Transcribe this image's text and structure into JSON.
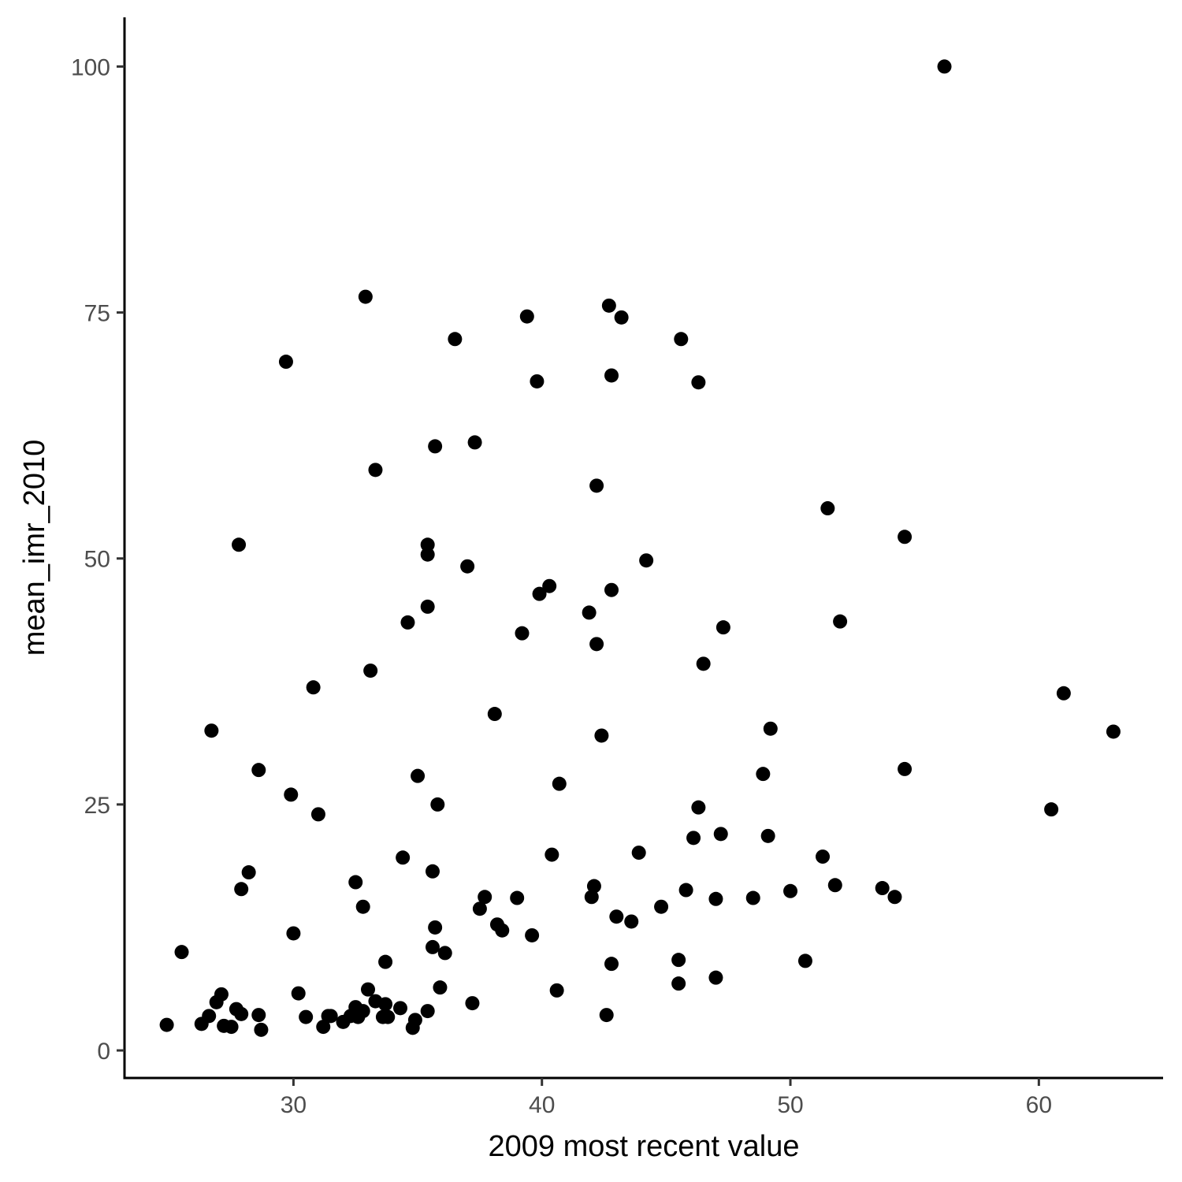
{
  "chart_data": {
    "type": "scatter",
    "xlabel": "2009 most recent value",
    "ylabel": "mean_imr_2010",
    "xlim": [
      23.2,
      65
    ],
    "ylim": [
      -2.8,
      105
    ],
    "x_ticks": [
      30,
      40,
      50,
      60
    ],
    "y_ticks": [
      0,
      25,
      50,
      75,
      100
    ],
    "grid": false,
    "point_color": "#000000",
    "points": [
      [
        56.2,
        100
      ],
      [
        32.9,
        76.6
      ],
      [
        42.7,
        75.7
      ],
      [
        39.4,
        74.6
      ],
      [
        43.2,
        74.5
      ],
      [
        36.5,
        72.3
      ],
      [
        45.6,
        72.3
      ],
      [
        29.7,
        70.0
      ],
      [
        42.8,
        68.6
      ],
      [
        39.8,
        68.0
      ],
      [
        46.3,
        67.9
      ],
      [
        37.3,
        61.8
      ],
      [
        35.7,
        61.4
      ],
      [
        33.3,
        59.0
      ],
      [
        42.2,
        57.4
      ],
      [
        51.5,
        55.1
      ],
      [
        54.6,
        52.2
      ],
      [
        27.8,
        51.4
      ],
      [
        35.4,
        51.4
      ],
      [
        35.4,
        50.4
      ],
      [
        37.0,
        49.2
      ],
      [
        44.2,
        49.8
      ],
      [
        40.3,
        47.2
      ],
      [
        39.9,
        46.4
      ],
      [
        42.8,
        46.8
      ],
      [
        35.4,
        45.1
      ],
      [
        41.9,
        44.5
      ],
      [
        34.6,
        43.5
      ],
      [
        52.0,
        43.6
      ],
      [
        47.3,
        43.0
      ],
      [
        39.2,
        42.4
      ],
      [
        42.2,
        41.3
      ],
      [
        46.5,
        39.3
      ],
      [
        33.1,
        38.6
      ],
      [
        30.8,
        36.9
      ],
      [
        61.0,
        36.3
      ],
      [
        38.1,
        34.2
      ],
      [
        26.7,
        32.5
      ],
      [
        49.2,
        32.7
      ],
      [
        63.0,
        32.4
      ],
      [
        42.4,
        32.0
      ],
      [
        28.6,
        28.5
      ],
      [
        35.0,
        27.9
      ],
      [
        48.9,
        28.1
      ],
      [
        54.6,
        28.6
      ],
      [
        40.7,
        27.1
      ],
      [
        29.9,
        26.0
      ],
      [
        35.8,
        25.0
      ],
      [
        46.3,
        24.7
      ],
      [
        60.5,
        24.5
      ],
      [
        31.0,
        24.0
      ],
      [
        47.2,
        22.0
      ],
      [
        46.1,
        21.6
      ],
      [
        49.1,
        21.8
      ],
      [
        40.4,
        19.9
      ],
      [
        43.9,
        20.1
      ],
      [
        34.4,
        19.6
      ],
      [
        51.3,
        19.7
      ],
      [
        28.2,
        18.1
      ],
      [
        35.6,
        18.2
      ],
      [
        32.5,
        17.1
      ],
      [
        27.9,
        16.4
      ],
      [
        42.1,
        16.7
      ],
      [
        45.8,
        16.3
      ],
      [
        51.8,
        16.8
      ],
      [
        53.7,
        16.5
      ],
      [
        37.7,
        15.6
      ],
      [
        39.0,
        15.5
      ],
      [
        42.0,
        15.6
      ],
      [
        47.0,
        15.4
      ],
      [
        48.5,
        15.5
      ],
      [
        50.0,
        16.2
      ],
      [
        54.2,
        15.6
      ],
      [
        32.8,
        14.6
      ],
      [
        37.5,
        14.4
      ],
      [
        44.8,
        14.6
      ],
      [
        43.0,
        13.6
      ],
      [
        43.6,
        13.1
      ],
      [
        35.7,
        12.5
      ],
      [
        38.2,
        12.8
      ],
      [
        38.4,
        12.2
      ],
      [
        30.0,
        11.9
      ],
      [
        39.6,
        11.7
      ],
      [
        25.5,
        10.0
      ],
      [
        35.6,
        10.5
      ],
      [
        36.1,
        9.9
      ],
      [
        33.7,
        9.0
      ],
      [
        42.8,
        8.8
      ],
      [
        45.5,
        9.2
      ],
      [
        50.6,
        9.1
      ],
      [
        47.0,
        7.4
      ],
      [
        45.5,
        6.8
      ],
      [
        35.9,
        6.4
      ],
      [
        40.6,
        6.1
      ],
      [
        30.2,
        5.8
      ],
      [
        33.0,
        6.2
      ],
      [
        27.1,
        5.7
      ],
      [
        26.9,
        4.9
      ],
      [
        33.3,
        5.0
      ],
      [
        33.7,
        4.7
      ],
      [
        37.2,
        4.8
      ],
      [
        32.5,
        4.4
      ],
      [
        27.7,
        4.2
      ],
      [
        34.3,
        4.3
      ],
      [
        32.8,
        4.0
      ],
      [
        26.6,
        3.5
      ],
      [
        27.9,
        3.7
      ],
      [
        28.6,
        3.6
      ],
      [
        30.5,
        3.4
      ],
      [
        31.4,
        3.5
      ],
      [
        31.5,
        3.5
      ],
      [
        32.3,
        3.5
      ],
      [
        32.6,
        3.4
      ],
      [
        33.6,
        3.4
      ],
      [
        33.8,
        3.4
      ],
      [
        35.4,
        4.0
      ],
      [
        42.6,
        3.6
      ],
      [
        24.9,
        2.6
      ],
      [
        26.3,
        2.7
      ],
      [
        27.2,
        2.5
      ],
      [
        27.5,
        2.4
      ],
      [
        28.7,
        2.1
      ],
      [
        31.2,
        2.4
      ],
      [
        32.0,
        2.9
      ],
      [
        34.8,
        2.3
      ],
      [
        34.9,
        3.1
      ]
    ]
  }
}
